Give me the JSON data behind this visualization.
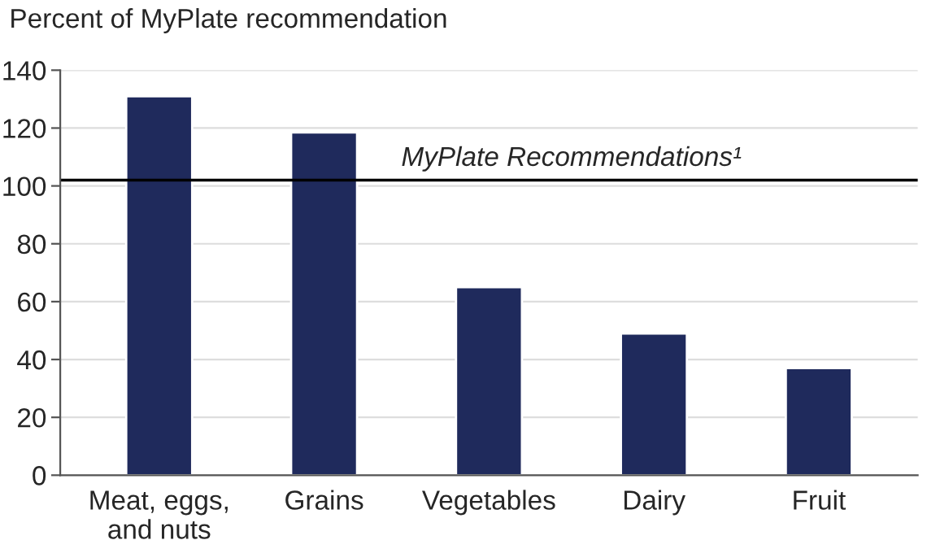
{
  "chart_data": {
    "type": "bar",
    "ylabel": "Percent of MyPlate recommendation",
    "categories": [
      "Meat, eggs,\nand nuts",
      "Grains",
      "Vegetables",
      "Dairy",
      "Fruit"
    ],
    "values": [
      131,
      118.5,
      65,
      49,
      37
    ],
    "color": "#1f2a5c",
    "ylim": [
      0,
      140
    ],
    "yticks": [
      0,
      20,
      40,
      60,
      80,
      100,
      120,
      140
    ],
    "grid": "y",
    "ref_lines": [
      {
        "axis": "y",
        "value": 102,
        "label": "MyPlate Recommendations¹",
        "color": "#000000"
      }
    ]
  }
}
